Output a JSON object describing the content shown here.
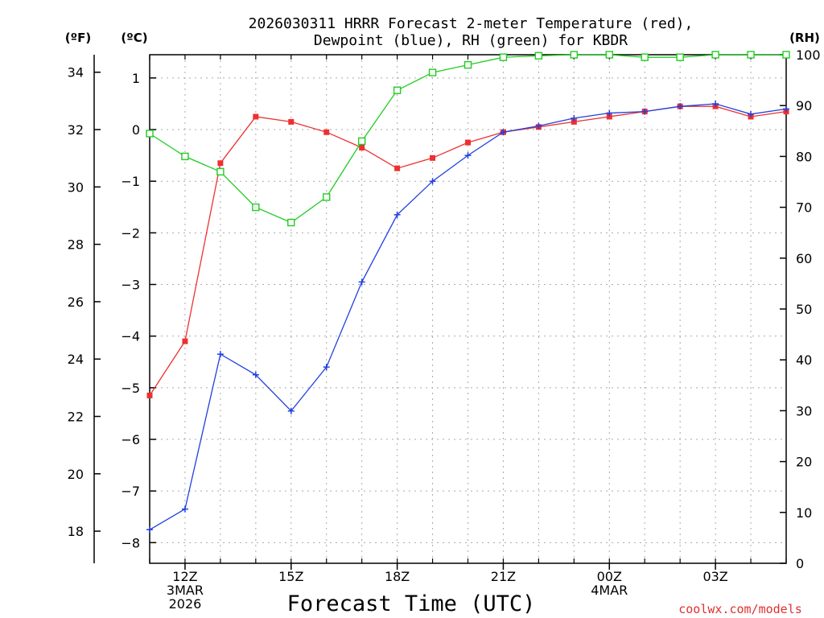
{
  "chart_data": {
    "type": "line",
    "title_line1": "2026030311 HRRR Forecast 2-meter Temperature (red),",
    "title_line2": "Dewpoint (blue), RH (green) for KBDR",
    "xlabel": "Forecast Time (UTC)",
    "credit": "coolwx.com/models",
    "unit_labels": {
      "fahrenheit": "(ºF)",
      "celsius": "(ºC)",
      "rh": "(RH)"
    },
    "x_hours": [
      11,
      12,
      13,
      14,
      15,
      16,
      17,
      18,
      19,
      20,
      21,
      22,
      23,
      24,
      25,
      26,
      27,
      28,
      29
    ],
    "x_range": [
      11,
      29
    ],
    "x_ticks": [
      {
        "hour": 12,
        "lines": [
          "12Z",
          "3MAR",
          "2026"
        ]
      },
      {
        "hour": 15,
        "lines": [
          "15Z"
        ]
      },
      {
        "hour": 18,
        "lines": [
          "18Z"
        ]
      },
      {
        "hour": 21,
        "lines": [
          "21Z"
        ]
      },
      {
        "hour": 24,
        "lines": [
          "00Z",
          "4MAR"
        ]
      },
      {
        "hour": 27,
        "lines": [
          "03Z"
        ]
      }
    ],
    "celsius_axis": {
      "range": [
        -8.4,
        1.45
      ],
      "ticks": [
        -8,
        -7,
        -6,
        -5,
        -4,
        -3,
        -2,
        -1,
        0,
        1
      ]
    },
    "fahrenheit_axis": {
      "range": [
        16.88,
        34.61
      ],
      "ticks": [
        18,
        20,
        22,
        24,
        26,
        28,
        30,
        32,
        34
      ]
    },
    "rh_axis": {
      "range": [
        0,
        100
      ],
      "ticks": [
        0,
        10,
        20,
        30,
        40,
        50,
        60,
        70,
        80,
        90,
        100
      ]
    },
    "series": [
      {
        "name": "Temperature",
        "color": "#ee3030",
        "axis": "celsius",
        "marker": "filled-square",
        "values": [
          -5.15,
          -4.1,
          -0.65,
          0.25,
          0.15,
          -0.05,
          -0.35,
          -0.75,
          -0.55,
          -0.25,
          -0.05,
          0.05,
          0.15,
          0.25,
          0.35,
          0.45,
          0.45,
          0.25,
          0.35
        ]
      },
      {
        "name": "Dewpoint",
        "color": "#2040e0",
        "axis": "celsius",
        "marker": "plus",
        "values": [
          -7.75,
          -7.35,
          -4.35,
          -4.75,
          -5.45,
          -4.6,
          -2.95,
          -1.65,
          -1.0,
          -0.5,
          -0.05,
          0.07,
          0.22,
          0.32,
          0.35,
          0.45,
          0.5,
          0.3,
          0.4
        ]
      },
      {
        "name": "RH",
        "color": "#22cc22",
        "axis": "rh",
        "marker": "open-square",
        "values": [
          84.5,
          80,
          77,
          70,
          67,
          72,
          83,
          93,
          96.5,
          98,
          99.5,
          99.8,
          100,
          100,
          99.5,
          99.5,
          100,
          100,
          100
        ]
      }
    ]
  }
}
